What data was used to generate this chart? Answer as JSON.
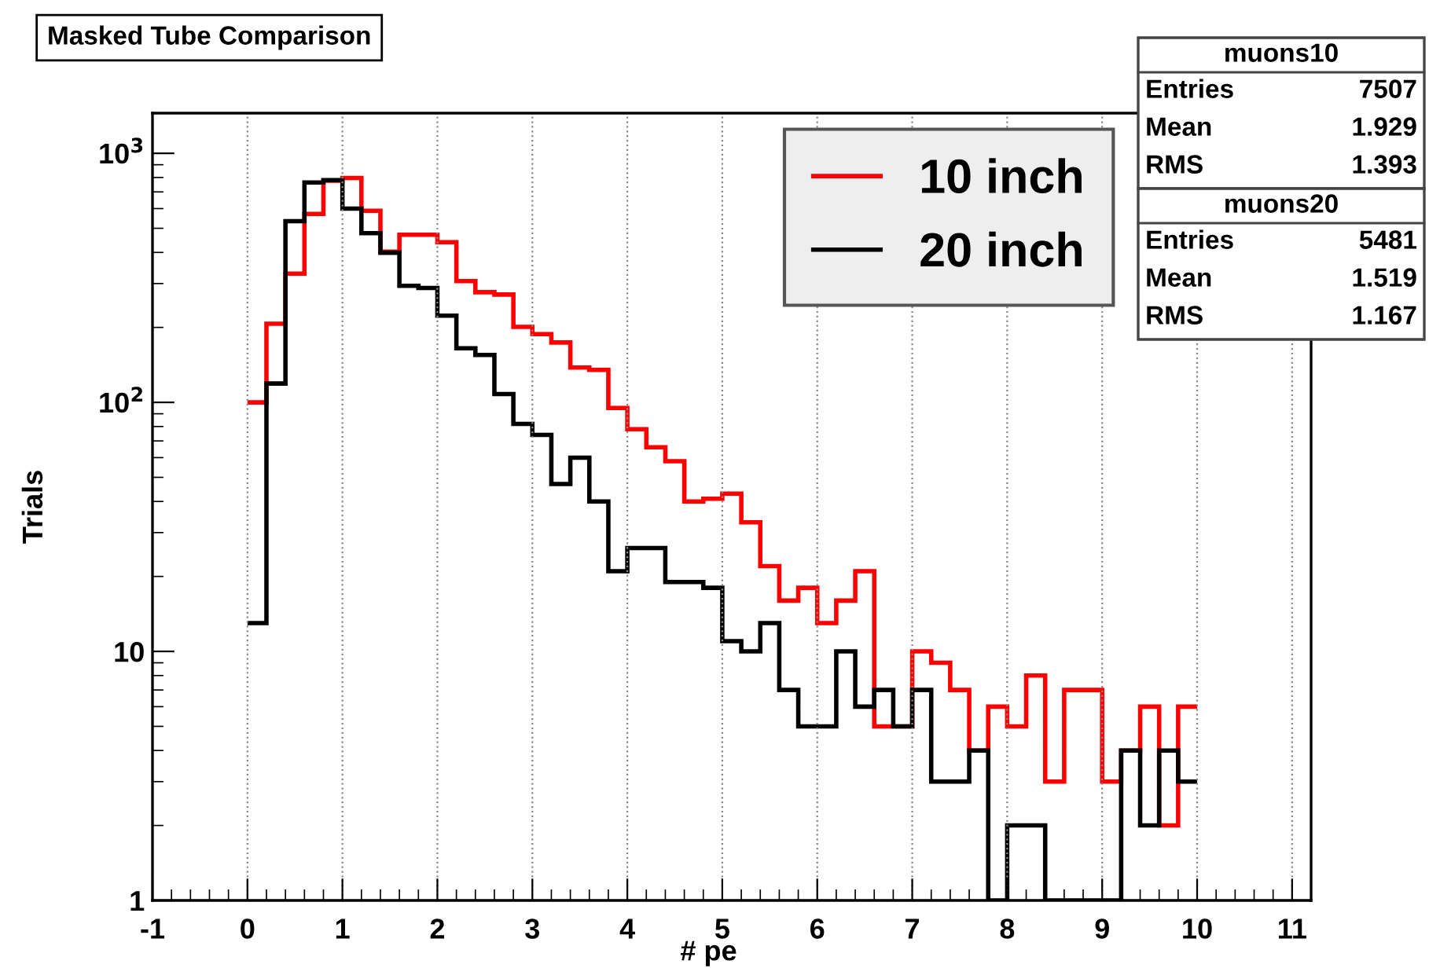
{
  "chart_data": {
    "type": "histogram",
    "title": "Masked Tube Comparison",
    "xlabel": "# pe",
    "ylabel": "Trials",
    "bins": [
      0,
      0.2,
      0.4,
      0.6,
      0.8,
      1.0,
      1.2,
      1.4,
      1.6,
      1.8,
      2.0,
      2.2,
      2.4,
      2.6,
      2.8,
      3.0,
      3.2,
      3.4,
      3.6,
      3.8,
      4.0,
      4.2,
      4.4,
      4.6,
      4.8,
      5.0,
      5.2,
      5.4,
      5.6,
      5.8,
      6.0,
      6.2,
      6.4,
      6.6,
      6.8,
      7.0,
      7.2,
      7.4,
      7.6,
      7.8,
      8.0,
      8.2,
      8.4,
      8.6,
      8.8,
      9.0,
      9.2,
      9.4,
      9.6,
      9.8,
      10.0
    ],
    "series": [
      {
        "name": "10 inch",
        "color": "#ff0000",
        "values": [
          100,
          207,
          329,
          571,
          776,
          796,
          588,
          403,
          471,
          471,
          440,
          307,
          277,
          271,
          201,
          188,
          174,
          138,
          135,
          95,
          78,
          66,
          58,
          40,
          41,
          43,
          33,
          22,
          16,
          18,
          13,
          16,
          21,
          5,
          5,
          10,
          9,
          7,
          4,
          6,
          5,
          8,
          3,
          7,
          7,
          3,
          4,
          6,
          2,
          6
        ]
      },
      {
        "name": "20 inch",
        "color": "#000000",
        "values": [
          13,
          119,
          534,
          764,
          780,
          600,
          478,
          399,
          294,
          288,
          223,
          165,
          155,
          108,
          82,
          74,
          47,
          60,
          40,
          21,
          26,
          26,
          19,
          19,
          18,
          11,
          10,
          13,
          7,
          5,
          5,
          10,
          6,
          7,
          5,
          7,
          3,
          3,
          4,
          null,
          2,
          2,
          null,
          null,
          null,
          null,
          4,
          2,
          4,
          3
        ]
      }
    ],
    "log": "y",
    "xlim": [
      -1,
      11.2
    ],
    "ylim": [
      1,
      1450
    ],
    "xticks": [
      -1,
      0,
      1,
      2,
      3,
      4,
      5,
      6,
      7,
      8,
      9,
      10,
      11
    ],
    "yticks": [
      1,
      10,
      {
        "value": 100,
        "label": "10$^{2}$"
      },
      {
        "value": 1000,
        "label": "10$^{3}$"
      }
    ],
    "grid": "x",
    "legend": "top right",
    "annotations": [
      "muons10",
      "Entries",
      "7507",
      "Mean",
      "1.929",
      "RMS",
      "1.393",
      "muons20",
      "Entries",
      "5481",
      "Mean",
      "1.519",
      "RMS",
      "1.167"
    ]
  }
}
